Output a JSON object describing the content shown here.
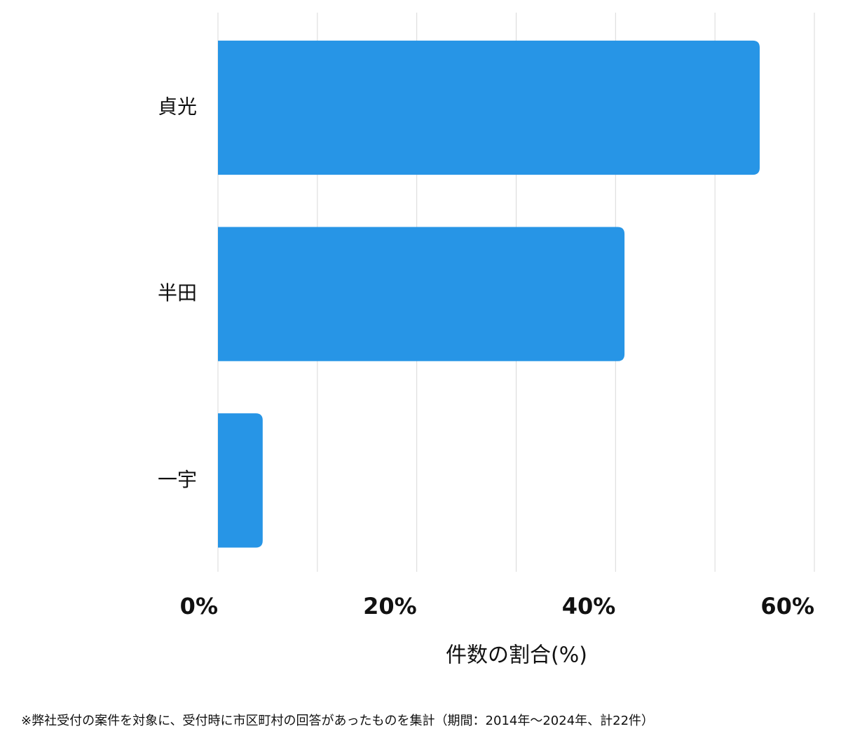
{
  "chart_data": {
    "type": "hbar",
    "categories": [
      "貞光",
      "半田",
      "一宇"
    ],
    "values": [
      54.5,
      40.9,
      4.5
    ],
    "color": "#2795e6",
    "xlim": [
      0,
      60
    ],
    "xticks": [
      {
        "value": 0,
        "label": "0%"
      },
      {
        "value": 20,
        "label": "20%"
      },
      {
        "value": 40,
        "label": "40%"
      },
      {
        "value": 60,
        "label": "60%"
      }
    ],
    "minor_xticks": [
      10,
      30,
      50
    ],
    "grid": true,
    "xlabel": "件数の割合(%)",
    "note": "※弊社受付の案件を対象に、受付時に市区町村の回答があったものを集計（期間：2014年〜2024年、計22件）"
  }
}
